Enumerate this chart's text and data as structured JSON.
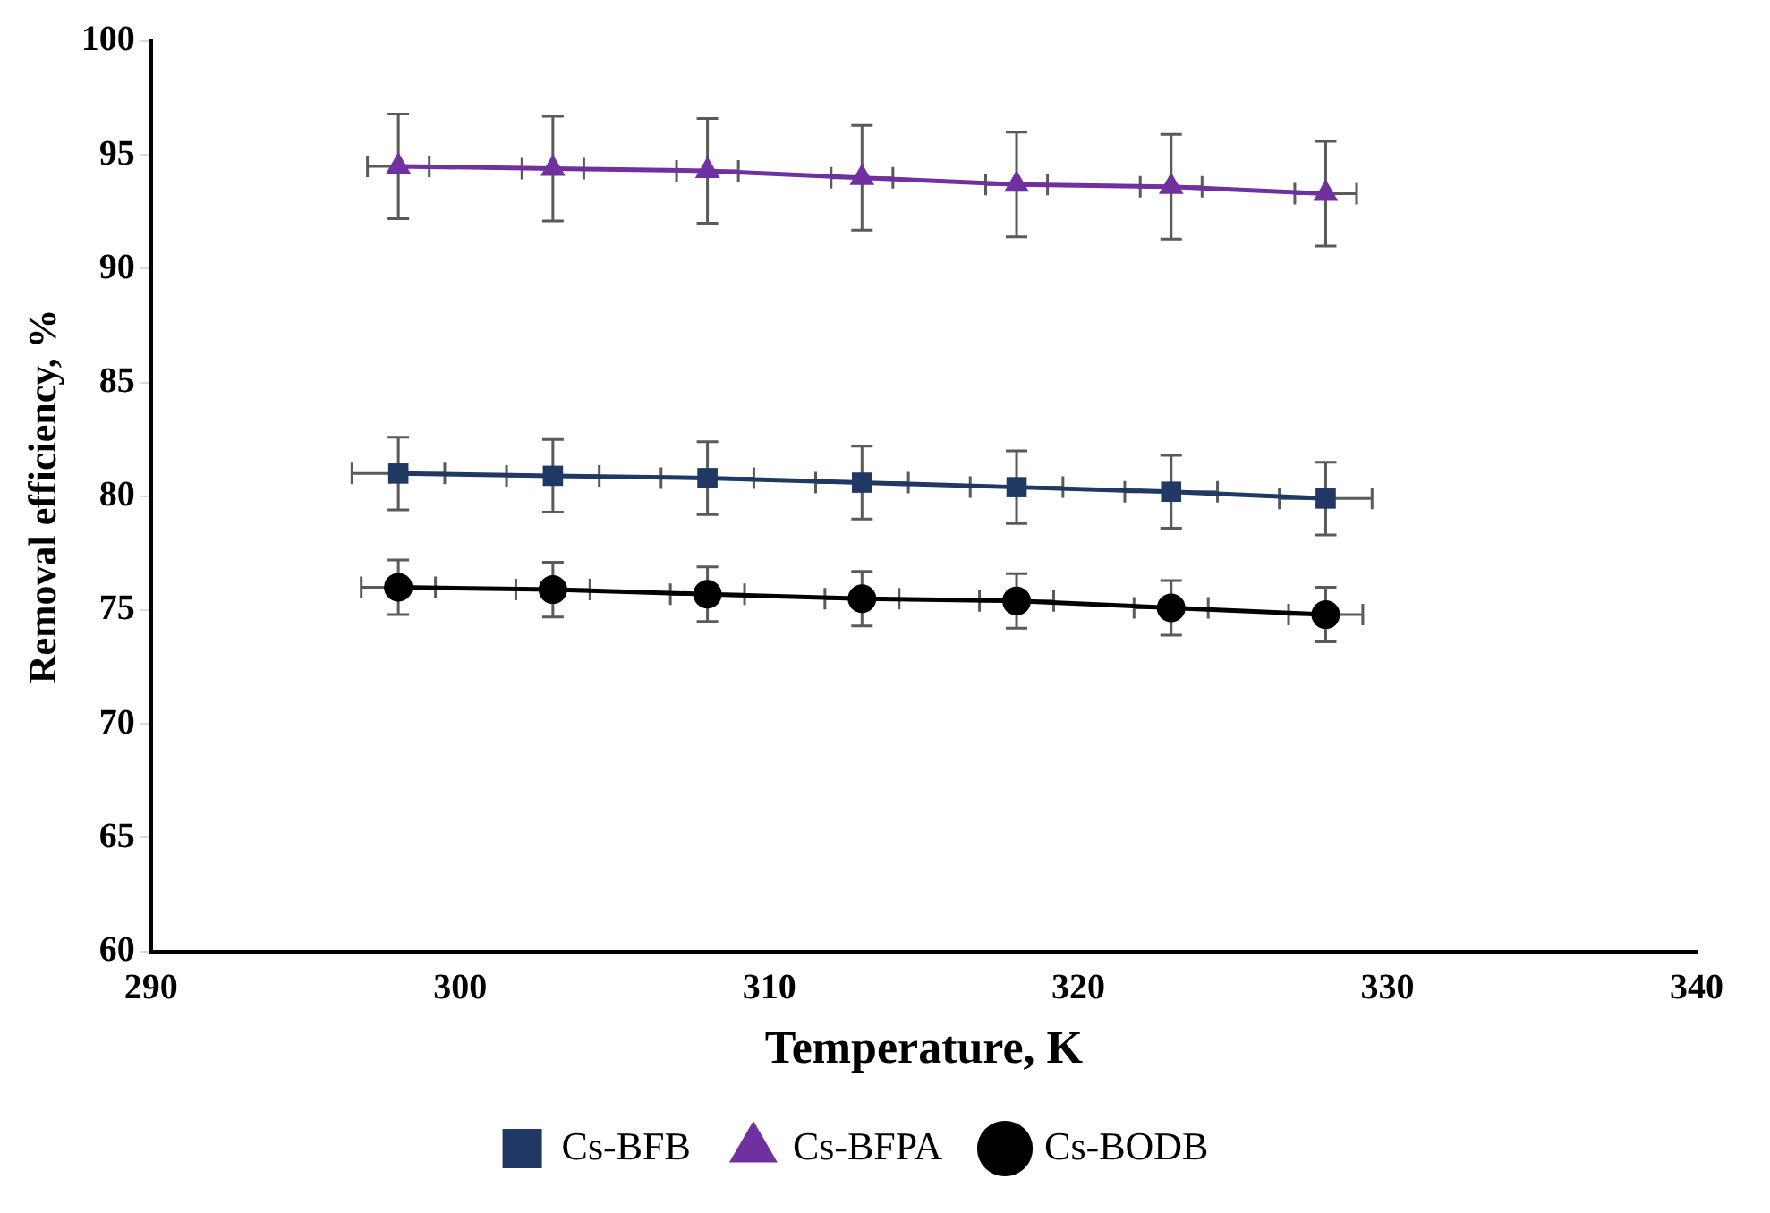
{
  "chart_data": {
    "type": "line",
    "xlabel": "Temperature, K",
    "ylabel": "Removal efficiency, %",
    "x": [
      298,
      303,
      308,
      313,
      318,
      323,
      328
    ],
    "series": [
      {
        "name": "Cs-BFB",
        "color": "#1f3864",
        "marker": "square",
        "values": [
          81.0,
          80.9,
          80.8,
          80.6,
          80.4,
          80.2,
          79.9
        ],
        "errors": [
          1.6,
          1.6,
          1.6,
          1.6,
          1.6,
          1.6,
          1.6
        ],
        "xerrors": [
          1.5,
          1.5,
          1.5,
          1.5,
          1.5,
          1.5,
          1.5
        ]
      },
      {
        "name": "Cs-BFPA",
        "color": "#7030a0",
        "marker": "triangle",
        "values": [
          94.5,
          94.4,
          94.3,
          94.0,
          93.7,
          93.6,
          93.3
        ],
        "errors": [
          2.3,
          2.3,
          2.3,
          2.3,
          2.3,
          2.3,
          2.3
        ],
        "xerrors": [
          1,
          1,
          1,
          1,
          1,
          1,
          1
        ]
      },
      {
        "name": "Cs-BODB",
        "color": "#000000",
        "marker": "circle",
        "values": [
          76.0,
          75.9,
          75.7,
          75.5,
          75.4,
          75.1,
          74.8
        ],
        "errors": [
          1.2,
          1.2,
          1.2,
          1.2,
          1.2,
          1.2,
          1.2
        ],
        "xerrors": [
          1.2,
          1.2,
          1.2,
          1.2,
          1.2,
          1.2,
          1.2
        ]
      }
    ],
    "xlim": [
      290,
      340
    ],
    "xticks": [
      290,
      300,
      310,
      320,
      330,
      340
    ],
    "ylim": [
      60,
      100
    ],
    "yticks": [
      60,
      65,
      70,
      75,
      80,
      85,
      90,
      95,
      100
    ],
    "grid": false,
    "legend": "bottom"
  }
}
